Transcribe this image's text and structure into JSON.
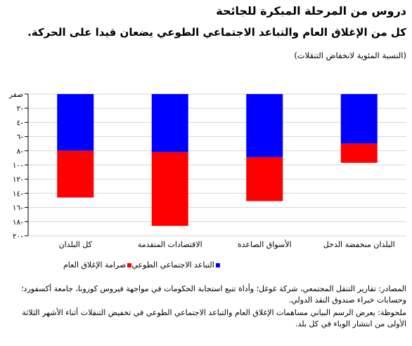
{
  "header": {
    "title": "دروس من المرحلة المبكرة للجائحة",
    "subtitle": "كل من الإغلاق العام والتباعد الاجتماعي الطوعي يضعان قيدا على الحركة.",
    "unit": "(النسبة المئوية لانخفاض التنقلات)"
  },
  "chart_data": {
    "type": "bar",
    "stacked": true,
    "categories": [
      "كل البلدان",
      "الاقتصادات المتقدمة",
      "الأسواق الصاعدة",
      "البلدان منخفضة الدخل"
    ],
    "series": [
      {
        "name": "التباعد الاجتماعي الطوعي",
        "color": "#0000ff",
        "values": [
          8,
          8.2,
          8.9,
          7
        ]
      },
      {
        "name": "صرامة الإغلاق العام",
        "color": "#ff0000",
        "values": [
          6.6,
          10.4,
          6.2,
          2.7
        ]
      }
    ],
    "ylim": [
      0,
      20
    ],
    "yticks": [
      0,
      2,
      4,
      6,
      8,
      10,
      12,
      14,
      16,
      18,
      20
    ],
    "ytick_labels": [
      "صفر",
      "٢-",
      "٤-",
      "٦-",
      "٨-",
      "١٠-",
      "١٢-",
      "١٤-",
      "١٦-",
      "١٨-",
      "٢٠-"
    ],
    "grid": true,
    "legend_position": "bottom"
  },
  "legend": {
    "items": [
      {
        "label": "التباعد الاجتماعي الطوعي",
        "color": "#0000ff"
      },
      {
        "label": "صرامة الإغلاق العام",
        "color": "#ff0000"
      }
    ]
  },
  "notes": {
    "sources": "المصادر: تقارير التنقل المجتمعي، شركة غوغل؛ وأداة تتبع استجابة الحكومات في مواجهة فيروس كورونا، جامعة أكسفورد؛ وحسابات خبراء صندوق النقد الدولي.",
    "note": "ملحوظة: يعرض الرسم البياني مساهمات الإغلاق العام والتباعد الاجتماعي الطوعي في تخفيض التنقلات أثناء الأشهر الثلاثة الأولى من انتشار الوباء في كل بلد."
  }
}
